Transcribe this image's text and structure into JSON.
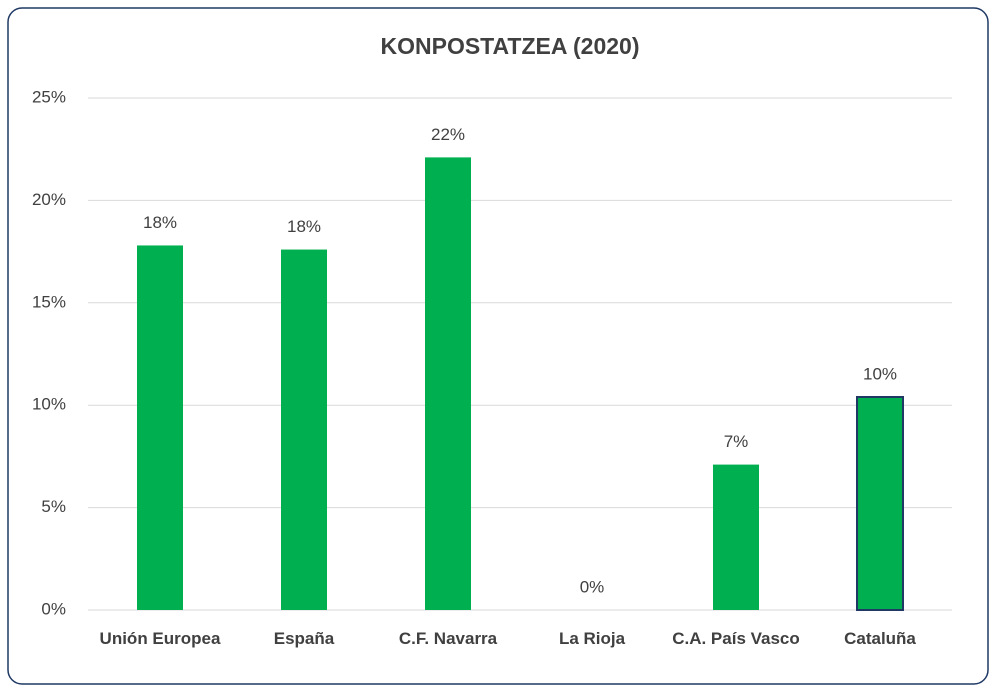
{
  "chart_data": {
    "type": "bar",
    "title": "KONPOSTATZEA (2020)",
    "categories": [
      "Unión Europea",
      "España",
      "C.F. Navarra",
      "La Rioja",
      "C.A. País Vasco",
      "Cataluña"
    ],
    "values": [
      17.8,
      17.6,
      22.1,
      0,
      7.1,
      10.4
    ],
    "value_labels": [
      "18%",
      "18%",
      "22%",
      "0%",
      "7%",
      "10%"
    ],
    "color": "#00b050",
    "edgecolors": [
      null,
      null,
      null,
      null,
      null,
      "#1f3864"
    ],
    "ylim": [
      0,
      25
    ],
    "yticks": [
      {
        "value": 0,
        "label": "0%"
      },
      {
        "value": 5,
        "label": "5%"
      },
      {
        "value": 10,
        "label": "10%"
      },
      {
        "value": 15,
        "label": "15%"
      },
      {
        "value": 20,
        "label": "20%"
      },
      {
        "value": 25,
        "label": "25%"
      }
    ],
    "grid": true
  }
}
